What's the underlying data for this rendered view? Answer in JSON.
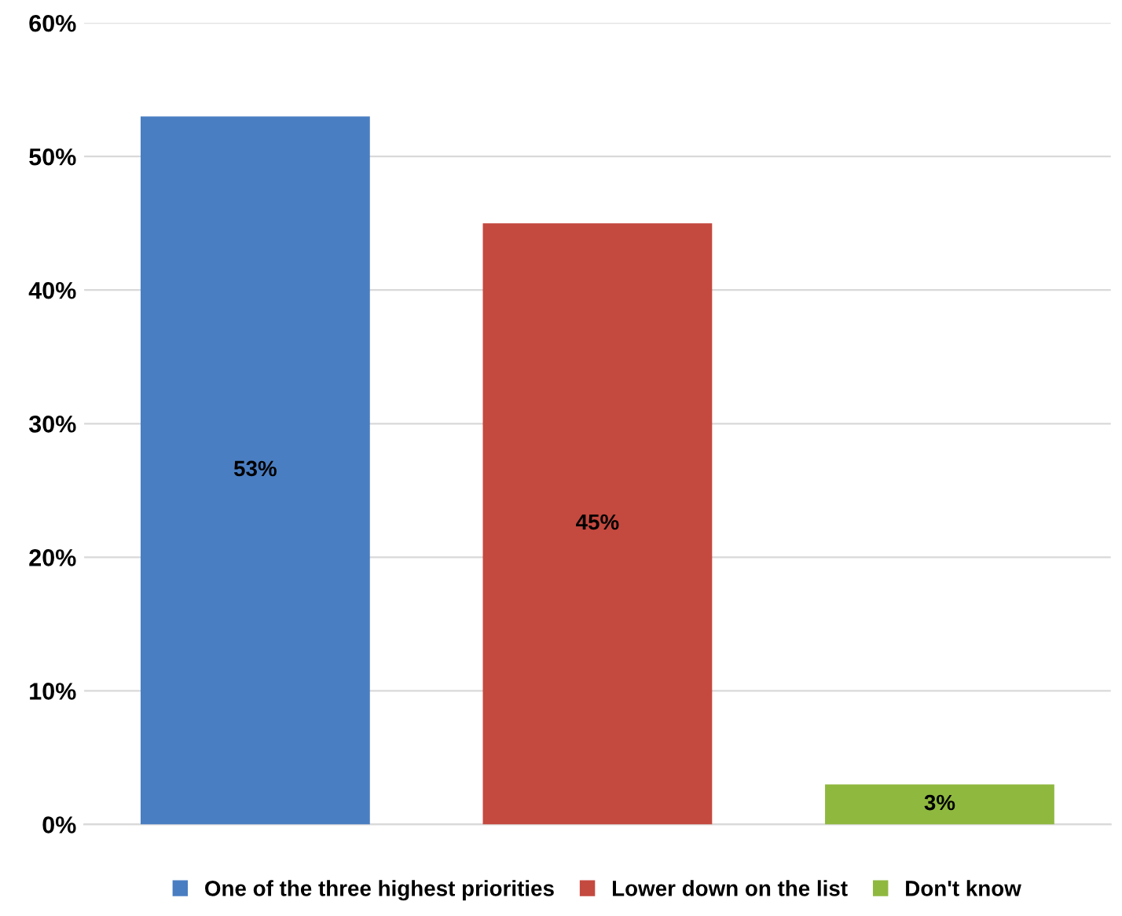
{
  "chart_data": {
    "type": "bar",
    "categories": [
      null,
      null,
      null
    ],
    "series": [
      {
        "name": "One of the three highest priorities",
        "color": "#4a7ec2",
        "values": [
          53,
          null,
          null
        ],
        "value_labels": [
          "53%",
          null,
          null
        ]
      },
      {
        "name": "Lower down on the list",
        "color": "#c4493f",
        "values": [
          null,
          45,
          null
        ],
        "value_labels": [
          null,
          "45%",
          null
        ]
      },
      {
        "name": "Don't know",
        "color": "#8fb83f",
        "values": [
          null,
          null,
          3
        ],
        "value_labels": [
          null,
          null,
          "3%"
        ]
      }
    ],
    "ylim": [
      0,
      60
    ],
    "yticks": [
      {
        "value": 0,
        "label": "0%"
      },
      {
        "value": 10,
        "label": "10%"
      },
      {
        "value": 20,
        "label": "20%"
      },
      {
        "value": 30,
        "label": "30%"
      },
      {
        "value": 40,
        "label": "40%"
      },
      {
        "value": 50,
        "label": "50%"
      },
      {
        "value": 60,
        "label": "60%"
      }
    ],
    "grid": "y",
    "legend": "bottom"
  }
}
